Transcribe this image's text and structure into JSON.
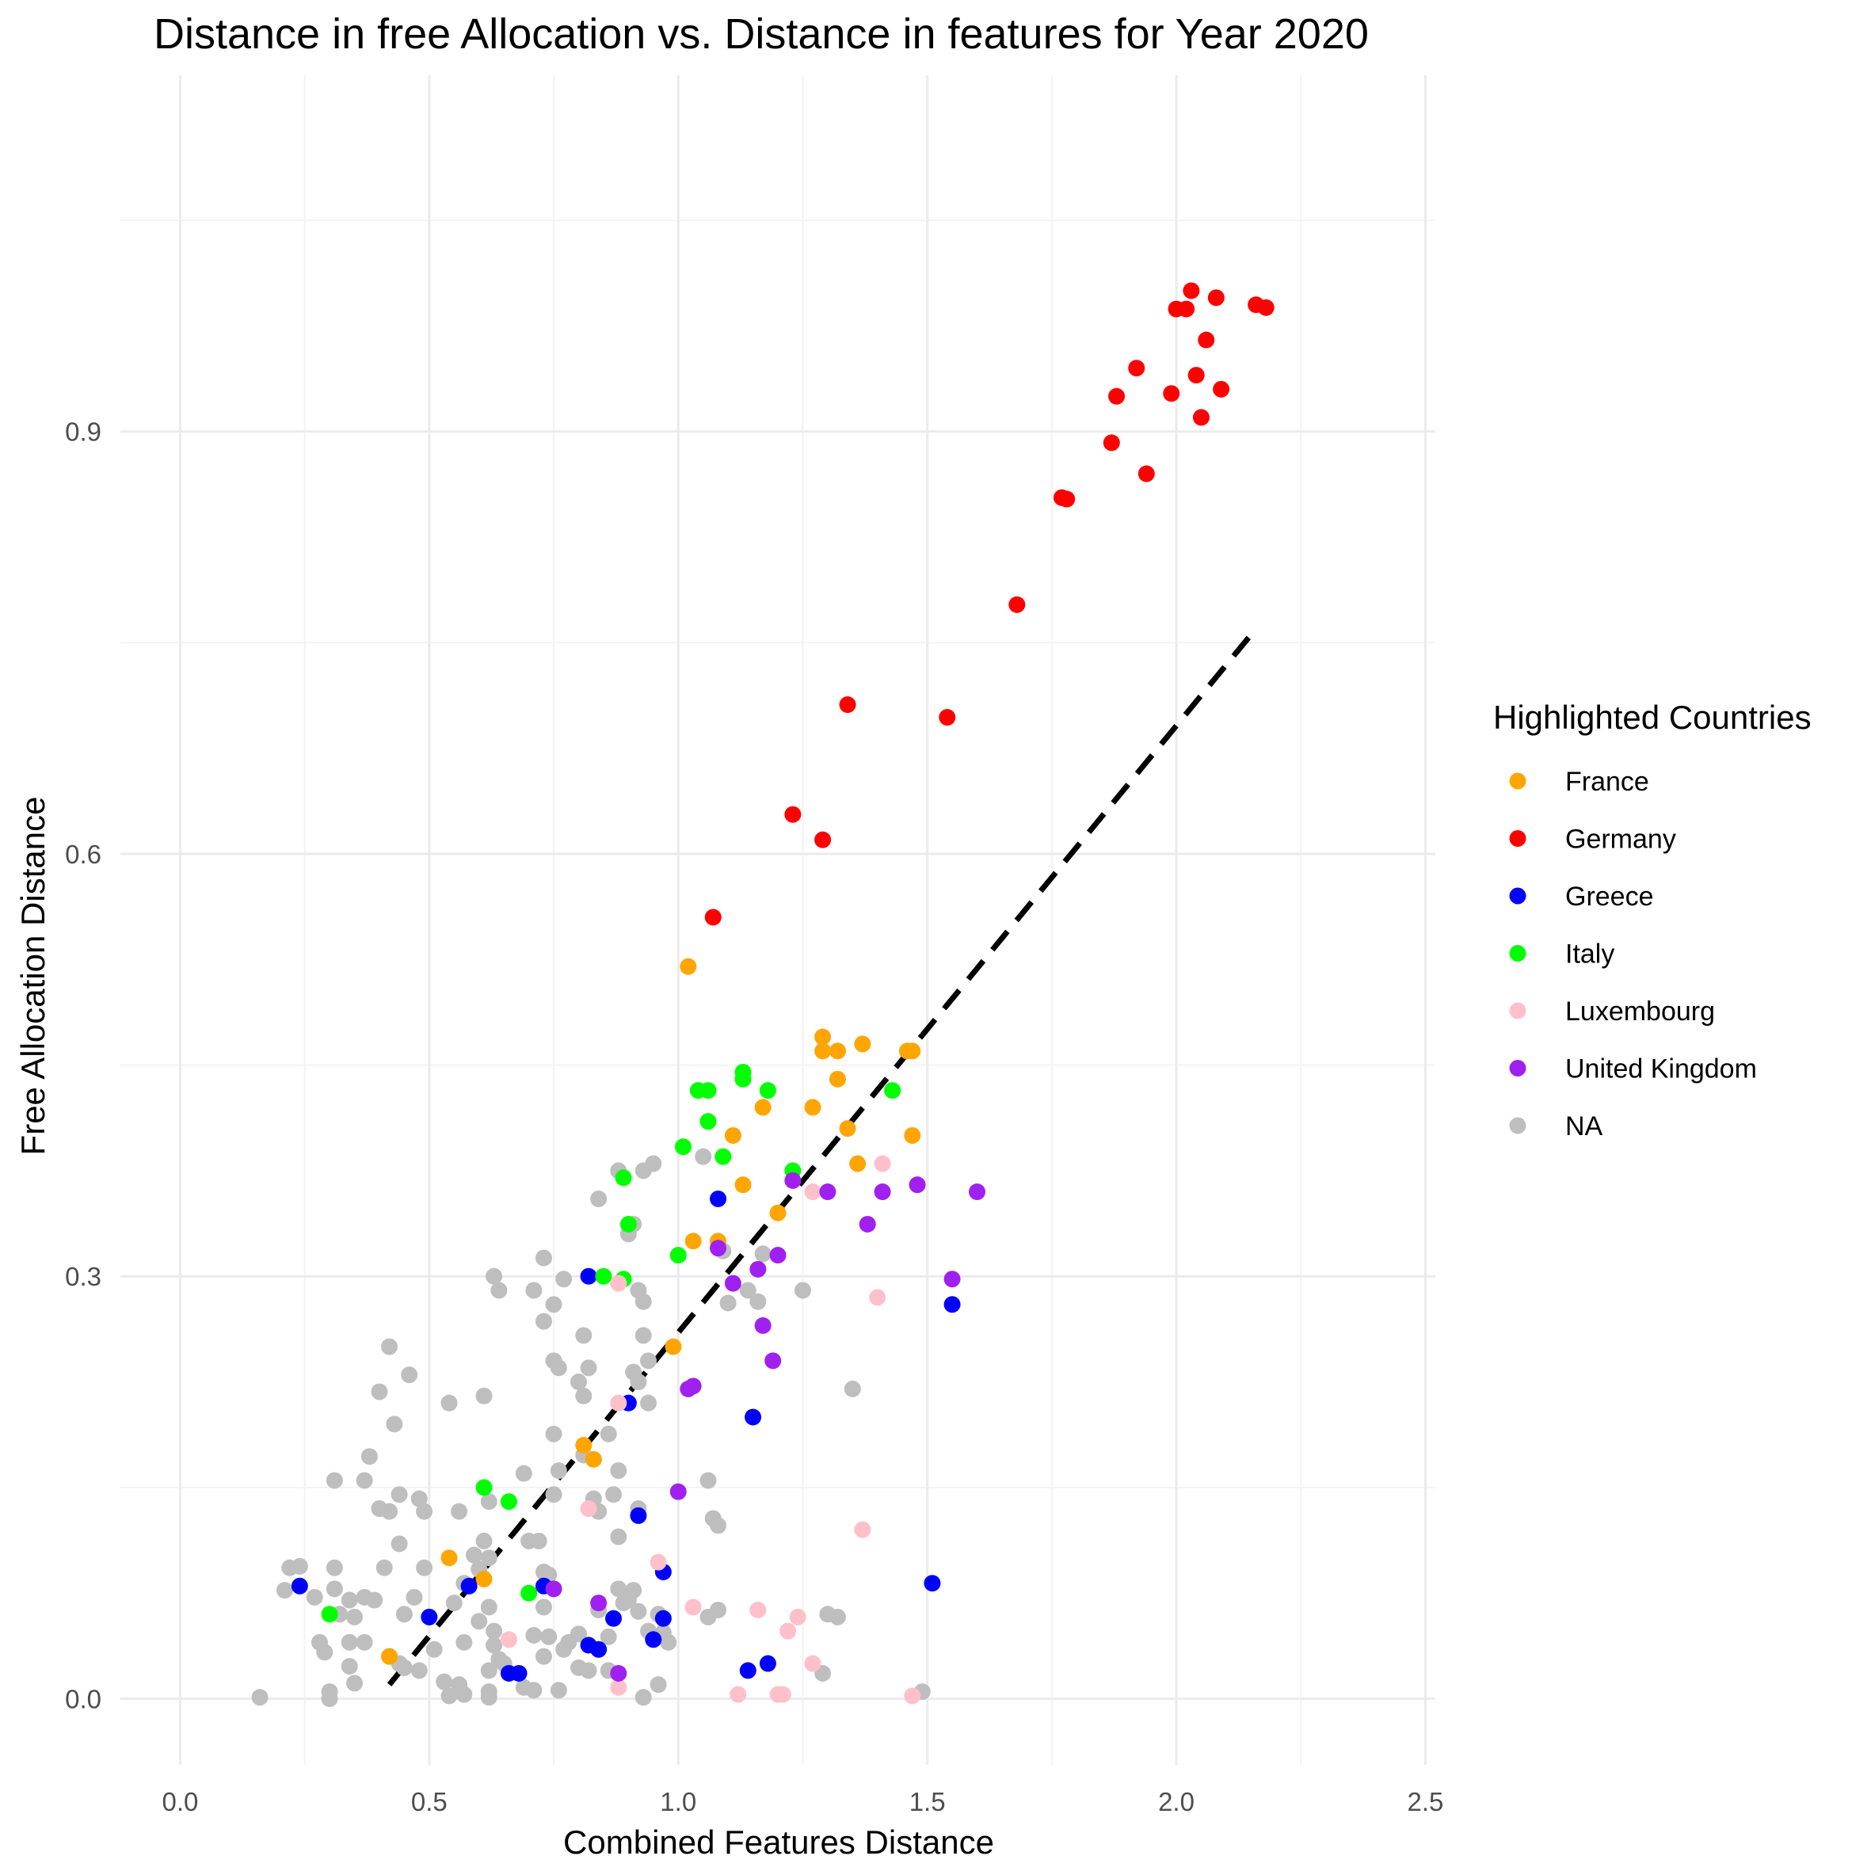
{
  "chart_data": {
    "type": "scatter",
    "title": "Distance in free Allocation vs. Distance in features for Year 2020",
    "xlabel": "Combined Features Distance",
    "ylabel": "Free Allocation Distance",
    "xlim": [
      -0.12,
      2.52
    ],
    "ylim": [
      -0.047,
      1.153
    ],
    "x_ticks": [
      0.0,
      0.5,
      1.0,
      1.5,
      2.0,
      2.5
    ],
    "x_tick_labels": [
      "0.0",
      "0.5",
      "1.0",
      "1.5",
      "2.0",
      "2.5"
    ],
    "y_ticks": [
      0.0,
      0.3,
      0.6,
      0.9
    ],
    "y_tick_labels": [
      "0.0",
      "0.3",
      "0.6",
      "0.9"
    ],
    "grid": true,
    "legend": {
      "title": "Highlighted Countries",
      "position": "right"
    },
    "trend_line": {
      "x": [
        0.42,
        2.16
      ],
      "y": [
        0.01,
        0.76
      ],
      "style": "dashed",
      "color": "#000000"
    },
    "series": [
      {
        "name": "France",
        "color": "#FFA500",
        "points": [
          [
            1.02,
            0.52
          ],
          [
            1.29,
            0.47
          ],
          [
            1.29,
            0.46
          ],
          [
            1.32,
            0.46
          ],
          [
            1.37,
            0.465
          ],
          [
            1.46,
            0.46
          ],
          [
            1.47,
            0.46
          ],
          [
            1.32,
            0.44
          ],
          [
            1.17,
            0.42
          ],
          [
            1.27,
            0.42
          ],
          [
            1.34,
            0.405
          ],
          [
            1.11,
            0.4
          ],
          [
            1.47,
            0.4
          ],
          [
            1.36,
            0.38
          ],
          [
            1.13,
            0.365
          ],
          [
            1.2,
            0.345
          ],
          [
            1.03,
            0.325
          ],
          [
            1.08,
            0.325
          ],
          [
            0.99,
            0.25
          ],
          [
            0.81,
            0.18
          ],
          [
            0.83,
            0.17
          ],
          [
            0.54,
            0.1
          ],
          [
            0.61,
            0.085
          ],
          [
            0.42,
            0.03
          ]
        ]
      },
      {
        "name": "Germany",
        "color": "#FF0000",
        "points": [
          [
            2.03,
            1.0
          ],
          [
            2.08,
            0.995
          ],
          [
            2.16,
            0.99
          ],
          [
            2.18,
            0.988
          ],
          [
            2.0,
            0.987
          ],
          [
            2.02,
            0.987
          ],
          [
            2.06,
            0.965
          ],
          [
            1.92,
            0.945
          ],
          [
            2.04,
            0.94
          ],
          [
            2.09,
            0.93
          ],
          [
            1.88,
            0.925
          ],
          [
            1.99,
            0.927
          ],
          [
            2.05,
            0.91
          ],
          [
            1.87,
            0.892
          ],
          [
            1.94,
            0.87
          ],
          [
            1.77,
            0.853
          ],
          [
            1.78,
            0.852
          ],
          [
            1.68,
            0.777
          ],
          [
            1.34,
            0.706
          ],
          [
            1.54,
            0.697
          ],
          [
            1.23,
            0.628
          ],
          [
            1.29,
            0.61
          ],
          [
            1.07,
            0.555
          ]
        ]
      },
      {
        "name": "Greece",
        "color": "#0000FF",
        "points": [
          [
            1.08,
            0.355
          ],
          [
            0.82,
            0.3
          ],
          [
            1.55,
            0.28
          ],
          [
            0.9,
            0.21
          ],
          [
            1.15,
            0.2
          ],
          [
            0.92,
            0.13
          ],
          [
            0.97,
            0.09
          ],
          [
            1.51,
            0.082
          ],
          [
            0.24,
            0.08
          ],
          [
            0.58,
            0.08
          ],
          [
            0.73,
            0.08
          ],
          [
            0.5,
            0.058
          ],
          [
            0.87,
            0.057
          ],
          [
            0.97,
            0.057
          ],
          [
            0.95,
            0.042
          ],
          [
            0.82,
            0.038
          ],
          [
            0.84,
            0.035
          ],
          [
            0.66,
            0.018
          ],
          [
            0.68,
            0.018
          ],
          [
            1.14,
            0.02
          ],
          [
            1.18,
            0.025
          ]
        ]
      },
      {
        "name": "Italy",
        "color": "#00FF00",
        "points": [
          [
            1.13,
            0.445
          ],
          [
            1.13,
            0.44
          ],
          [
            1.04,
            0.432
          ],
          [
            1.06,
            0.432
          ],
          [
            1.18,
            0.432
          ],
          [
            1.43,
            0.432
          ],
          [
            1.06,
            0.41
          ],
          [
            1.01,
            0.392
          ],
          [
            1.09,
            0.385
          ],
          [
            1.23,
            0.375
          ],
          [
            0.89,
            0.37
          ],
          [
            0.9,
            0.337
          ],
          [
            1.0,
            0.315
          ],
          [
            0.85,
            0.3
          ],
          [
            0.89,
            0.298
          ],
          [
            0.61,
            0.15
          ],
          [
            0.66,
            0.14
          ],
          [
            0.7,
            0.075
          ],
          [
            0.3,
            0.06
          ]
        ]
      },
      {
        "name": "Luxembourg",
        "color": "#FFC0CB",
        "points": [
          [
            1.41,
            0.38
          ],
          [
            1.27,
            0.36
          ],
          [
            0.88,
            0.295
          ],
          [
            1.4,
            0.285
          ],
          [
            0.88,
            0.21
          ],
          [
            0.82,
            0.135
          ],
          [
            1.37,
            0.12
          ],
          [
            0.96,
            0.097
          ],
          [
            1.03,
            0.065
          ],
          [
            1.16,
            0.063
          ],
          [
            1.24,
            0.058
          ],
          [
            1.22,
            0.048
          ],
          [
            0.66,
            0.042
          ],
          [
            1.27,
            0.025
          ],
          [
            0.88,
            0.008
          ],
          [
            1.12,
            0.003
          ],
          [
            1.2,
            0.003
          ],
          [
            1.21,
            0.003
          ],
          [
            1.47,
            0.002
          ]
        ]
      },
      {
        "name": "United Kingdom",
        "color": "#A020F0",
        "points": [
          [
            1.23,
            0.368
          ],
          [
            1.3,
            0.36
          ],
          [
            1.41,
            0.36
          ],
          [
            1.48,
            0.365
          ],
          [
            1.6,
            0.36
          ],
          [
            1.38,
            0.337
          ],
          [
            1.08,
            0.32
          ],
          [
            1.2,
            0.315
          ],
          [
            1.16,
            0.305
          ],
          [
            1.11,
            0.295
          ],
          [
            1.55,
            0.298
          ],
          [
            1.17,
            0.265
          ],
          [
            1.19,
            0.24
          ],
          [
            1.02,
            0.22
          ],
          [
            1.03,
            0.222
          ],
          [
            1.0,
            0.147
          ],
          [
            0.75,
            0.078
          ],
          [
            0.84,
            0.068
          ],
          [
            0.88,
            0.018
          ]
        ]
      },
      {
        "name": "NA",
        "color": "#BEBEBE",
        "points": [
          [
            0.88,
            0.375
          ],
          [
            0.93,
            0.375
          ],
          [
            0.95,
            0.38
          ],
          [
            1.05,
            0.385
          ],
          [
            0.84,
            0.355
          ],
          [
            0.9,
            0.33
          ],
          [
            0.91,
            0.337
          ],
          [
            0.73,
            0.313
          ],
          [
            0.63,
            0.3
          ],
          [
            0.71,
            0.29
          ],
          [
            0.64,
            0.29
          ],
          [
            0.77,
            0.298
          ],
          [
            1.09,
            0.318
          ],
          [
            1.17,
            0.316
          ],
          [
            0.92,
            0.29
          ],
          [
            0.93,
            0.282
          ],
          [
            1.14,
            0.29
          ],
          [
            1.16,
            0.282
          ],
          [
            1.25,
            0.29
          ],
          [
            1.1,
            0.281
          ],
          [
            0.75,
            0.28
          ],
          [
            0.73,
            0.268
          ],
          [
            0.81,
            0.258
          ],
          [
            0.93,
            0.258
          ],
          [
            0.42,
            0.25
          ],
          [
            0.75,
            0.24
          ],
          [
            0.76,
            0.235
          ],
          [
            0.82,
            0.235
          ],
          [
            0.94,
            0.24
          ],
          [
            0.91,
            0.232
          ],
          [
            0.92,
            0.225
          ],
          [
            0.46,
            0.23
          ],
          [
            0.8,
            0.225
          ],
          [
            0.81,
            0.215
          ],
          [
            0.4,
            0.218
          ],
          [
            0.54,
            0.21
          ],
          [
            0.61,
            0.215
          ],
          [
            0.94,
            0.21
          ],
          [
            1.35,
            0.22
          ],
          [
            0.43,
            0.195
          ],
          [
            0.75,
            0.188
          ],
          [
            0.86,
            0.188
          ],
          [
            0.81,
            0.173
          ],
          [
            0.38,
            0.172
          ],
          [
            0.76,
            0.162
          ],
          [
            0.69,
            0.16
          ],
          [
            0.88,
            0.162
          ],
          [
            1.06,
            0.155
          ],
          [
            0.31,
            0.155
          ],
          [
            0.37,
            0.155
          ],
          [
            0.44,
            0.145
          ],
          [
            0.48,
            0.142
          ],
          [
            0.62,
            0.14
          ],
          [
            0.75,
            0.145
          ],
          [
            0.87,
            0.145
          ],
          [
            0.83,
            0.142
          ],
          [
            0.4,
            0.135
          ],
          [
            0.42,
            0.133
          ],
          [
            0.49,
            0.133
          ],
          [
            0.56,
            0.133
          ],
          [
            0.84,
            0.133
          ],
          [
            0.92,
            0.135
          ],
          [
            1.07,
            0.128
          ],
          [
            1.08,
            0.123
          ],
          [
            0.44,
            0.11
          ],
          [
            0.61,
            0.112
          ],
          [
            0.7,
            0.112
          ],
          [
            0.72,
            0.112
          ],
          [
            0.88,
            0.115
          ],
          [
            0.59,
            0.102
          ],
          [
            0.62,
            0.1
          ],
          [
            0.6,
            0.092
          ],
          [
            0.41,
            0.093
          ],
          [
            0.49,
            0.093
          ],
          [
            0.22,
            0.093
          ],
          [
            0.24,
            0.094
          ],
          [
            0.31,
            0.093
          ],
          [
            0.73,
            0.09
          ],
          [
            0.74,
            0.088
          ],
          [
            0.57,
            0.082
          ],
          [
            0.21,
            0.077
          ],
          [
            0.31,
            0.078
          ],
          [
            0.88,
            0.078
          ],
          [
            0.91,
            0.077
          ],
          [
            0.27,
            0.072
          ],
          [
            0.34,
            0.07
          ],
          [
            0.37,
            0.072
          ],
          [
            0.39,
            0.07
          ],
          [
            0.47,
            0.072
          ],
          [
            0.55,
            0.068
          ],
          [
            0.62,
            0.065
          ],
          [
            0.73,
            0.065
          ],
          [
            0.84,
            0.063
          ],
          [
            0.89,
            0.068
          ],
          [
            0.9,
            0.07
          ],
          [
            0.92,
            0.062
          ],
          [
            0.96,
            0.06
          ],
          [
            1.08,
            0.063
          ],
          [
            1.3,
            0.06
          ],
          [
            1.32,
            0.058
          ],
          [
            0.32,
            0.06
          ],
          [
            0.35,
            0.058
          ],
          [
            0.45,
            0.06
          ],
          [
            0.6,
            0.055
          ],
          [
            0.63,
            0.048
          ],
          [
            0.71,
            0.045
          ],
          [
            0.74,
            0.044
          ],
          [
            0.78,
            0.04
          ],
          [
            0.8,
            0.046
          ],
          [
            0.86,
            0.044
          ],
          [
            0.94,
            0.048
          ],
          [
            0.97,
            0.047
          ],
          [
            0.98,
            0.04
          ],
          [
            1.06,
            0.058
          ],
          [
            0.28,
            0.04
          ],
          [
            0.34,
            0.04
          ],
          [
            0.37,
            0.04
          ],
          [
            0.29,
            0.033
          ],
          [
            0.51,
            0.035
          ],
          [
            0.63,
            0.038
          ],
          [
            0.57,
            0.04
          ],
          [
            0.64,
            0.028
          ],
          [
            0.73,
            0.03
          ],
          [
            0.77,
            0.035
          ],
          [
            0.44,
            0.025
          ],
          [
            0.34,
            0.023
          ],
          [
            0.45,
            0.022
          ],
          [
            0.48,
            0.02
          ],
          [
            0.62,
            0.02
          ],
          [
            0.65,
            0.025
          ],
          [
            0.8,
            0.022
          ],
          [
            0.82,
            0.02
          ],
          [
            0.86,
            0.02
          ],
          [
            1.29,
            0.018
          ],
          [
            0.35,
            0.011
          ],
          [
            0.53,
            0.012
          ],
          [
            0.56,
            0.01
          ],
          [
            0.69,
            0.008
          ],
          [
            0.71,
            0.006
          ],
          [
            0.76,
            0.006
          ],
          [
            0.3,
            0.005
          ],
          [
            0.62,
            0.005
          ],
          [
            0.96,
            0.01
          ],
          [
            1.49,
            0.005
          ],
          [
            0.16,
            0.001
          ],
          [
            0.3,
            0.0
          ],
          [
            0.54,
            0.002
          ],
          [
            0.57,
            0.003
          ],
          [
            0.62,
            0.001
          ],
          [
            0.93,
            0.001
          ]
        ]
      }
    ]
  }
}
